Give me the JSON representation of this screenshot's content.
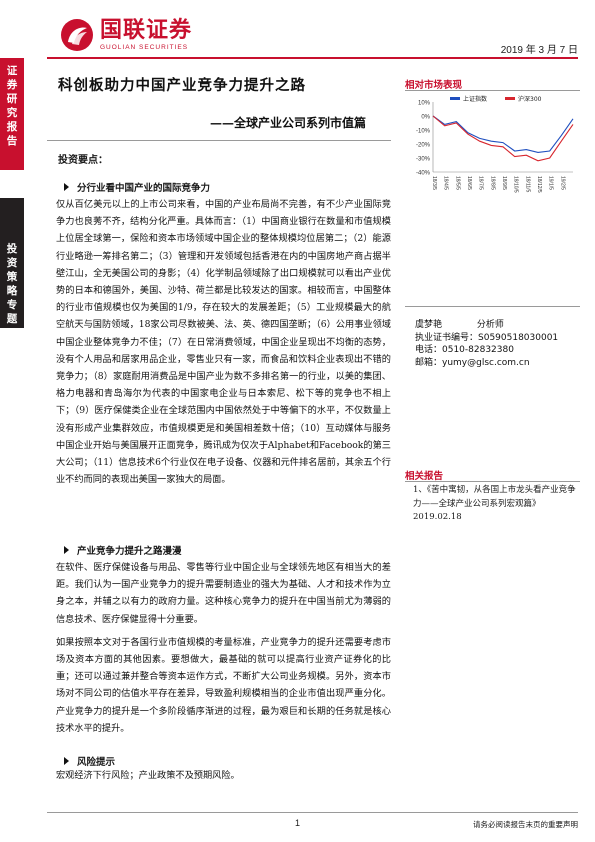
{
  "header": {
    "brand_cn": "国联证券",
    "brand_en": "GUOLIAN SECURITIES",
    "date": "2019 年 3 月 7 日"
  },
  "sidebar": {
    "tab1": "证券研究报告",
    "tab2": "投资策略专题"
  },
  "title": "科创板助力中国产业竞争力提升之路",
  "subtitle": "——全球产业公司系列市值篇",
  "highlights_heading": "投资要点：",
  "sections": [
    {
      "heading": "分行业看中国产业的国际竞争力",
      "paragraphs": [
        "仅从百亿美元以上的上市公司来看，中国的产业布局尚不完善，有不少产业国际竞争力也良莠不齐，结构分化严重。具体而言：（1）中国商业银行在数量和市值规模上位居全球第一，保险和资本市场领域中国企业的整体规模均位居第二；（2）能源行业略逊一筹排名第二；（3）管理和开发领域包括香港在内的中国房地产商占据半壁江山，全无美国公司的身影；（4）化学制品领域除了出口规模就可以看出产业优势的日本和德国外，美国、沙特、荷兰都是比较发达的国家。相较而言，中国整体的行业市值规模也仅为美国的1/9，存在较大的发展差距；（5）工业规模最大的航空航天与国防领域，18家公司尽数被美、法、英、德四国垄断；（6）公用事业领域中国企业整体竞争力不佳；（7）在日常消费领域，中国企业呈现出不均衡的态势，没有个人用品和居家用品企业，零售业只有一家，而食品和饮料企业表现出不错的竞争力；（8）家庭耐用消费品是中国产业为数不多排名第一的行业，以美的集团、格力电器和青岛海尔为代表的中国家电企业与日本索尼、松下等的竞争也不相上下；（9）医疗保健类企业在全球范围内中国依然处于中等偏下的水平，不仅数量上没有形成产业集群效应，市值规模更是和美国相差数十倍；（10）互动媒体与服务中国企业开始与美国展开正面竞争，腾讯成为仅次于Alphabet和Facebook的第三大公司；（11）信息技术6个行业仅在电子设备、仪器和元件排名居前，其余五个行业不约而同的表现出美国一家独大的局面。"
      ]
    },
    {
      "heading": "产业竞争力提升之路漫漫",
      "paragraphs": [
        "在软件、医疗保健设备与用品、零售等行业中国企业与全球领先地区有相当大的差距。我们认为一国产业竞争力的提升需要制造业的强大为基础、人才和技术作为立身之本，并辅之以有力的政府力量。这种核心竞争力的提升在中国当前尤为薄弱的信息技术、医疗保健显得十分重要。",
        "如果按照本文对于各国行业市值规模的考量标准，产业竞争力的提升还需要考虑市场及资本方面的其他因素。要想做大，最基础的就可以提高行业资产证券化的比重；还可以通过兼并整合等资本运作方式，不断扩大公司业务规模。另外，资本市场对不同公司的估值水平存在差异，导致盈利规模相当的企业市值出现严重分化。产业竞争力的提升是一个多阶段循序渐进的过程，最为艰巨和长期的任务就是核心技术水平的提升。"
      ]
    },
    {
      "heading": "风险提示",
      "paragraphs": [
        "宏观经济下行风险；产业政策不及预期风险。"
      ]
    }
  ],
  "market_chart": {
    "heading": "相对市场表现",
    "legend": [
      "上证指数",
      "沪深300"
    ],
    "colors": {
      "series1": "#1f4fbf",
      "series2": "#d7262e"
    },
    "y_ticks": [
      "10%",
      "0%",
      "-10%",
      "-20%",
      "-30%",
      "-40%"
    ],
    "x_ticks": [
      "18/3/5",
      "18/4/5",
      "18/5/5",
      "18/6/5",
      "18/7/5",
      "18/8/5",
      "18/9/5",
      "18/10/5",
      "18/11/5",
      "18/12/5",
      "19/1/5",
      "19/2/5"
    ]
  },
  "chart_data": {
    "type": "line",
    "x": [
      "18/3/5",
      "18/4/5",
      "18/5/5",
      "18/6/5",
      "18/7/5",
      "18/8/5",
      "18/9/5",
      "18/10/5",
      "18/11/5",
      "18/12/5",
      "19/1/5",
      "19/2/5",
      "19/3/5"
    ],
    "series": [
      {
        "name": "上证指数",
        "values": [
          0,
          -6,
          -4,
          -12,
          -16,
          -18,
          -19,
          -25,
          -24,
          -26,
          -25,
          -14,
          -2
        ]
      },
      {
        "name": "沪深300",
        "values": [
          0,
          -7,
          -5,
          -13,
          -18,
          -21,
          -22,
          -29,
          -28,
          -32,
          -30,
          -18,
          -6
        ]
      }
    ],
    "ylim": [
      -40,
      10
    ]
  },
  "analyst": {
    "name": "虞梦艳",
    "role": "分析师",
    "license": "执业证书编号：S0590518030001",
    "phone": "电话：0510-82832380",
    "email": "邮箱：yumy@glsc.com.cn"
  },
  "related": {
    "heading": "相关报告",
    "items": [
      "1、《苦中寓韧，从各国上市龙头看产业竞争力——全球产业公司系列宏观篇》2019.02.18"
    ]
  },
  "footer": {
    "page": "1",
    "note": "请务必阅读报告末页的重要声明"
  }
}
